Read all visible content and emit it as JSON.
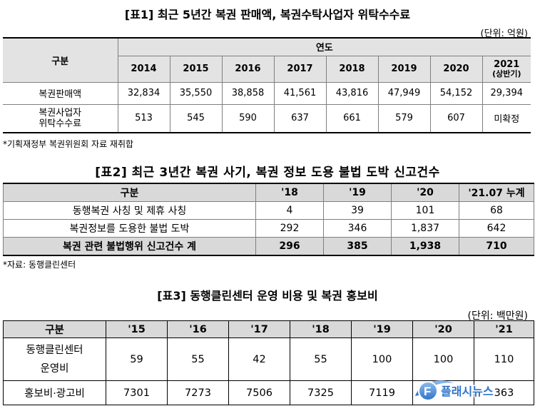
{
  "table1": {
    "title": "[표1] 최근 5년간 복권 판매액, 복권수탁사업자 위탁수수료",
    "unit": "(단위: 억원)",
    "header_group": "구분",
    "header_year": "연도",
    "years": [
      "2014",
      "2015",
      "2016",
      "2017",
      "2018",
      "2019",
      "2020"
    ],
    "year_2021": "2021",
    "year_2021_sub": "(상반기)",
    "rows": [
      {
        "label": "복권판매액",
        "values": [
          "32,834",
          "35,550",
          "38,858",
          "41,561",
          "43,816",
          "47,949",
          "54,152",
          "29,394"
        ]
      },
      {
        "label_line1": "복권사업자",
        "label_line2": "위탁수수료",
        "values": [
          "513",
          "545",
          "590",
          "637",
          "661",
          "579",
          "607",
          "미확정"
        ]
      }
    ],
    "source": "*기획재정부 복권위원회 자료 재취합"
  },
  "table2": {
    "title": "[표2] 최근 3년간 복권 사기, 복권 정보 도용 불법 도박 신고건수",
    "headers": [
      "구분",
      "'18",
      "'19",
      "'20",
      "'21.07 누계"
    ],
    "rows": [
      {
        "label": "동행복권 사칭 및 제휴 사칭",
        "values": [
          "4",
          "39",
          "101",
          "68"
        ]
      },
      {
        "label": "복권정보를 도용한 불법 도박",
        "values": [
          "292",
          "346",
          "1,837",
          "642"
        ]
      }
    ],
    "total": {
      "label": "복권 관련 불법행위 신고건수 계",
      "values": [
        "296",
        "385",
        "1,938",
        "710"
      ]
    },
    "source": "*자료: 동행클린센터"
  },
  "table3": {
    "title": "[표3] 동행클린센터 운영 비용 및 복권 홍보비",
    "unit": "(단위: 백만원)",
    "headers": [
      "구분",
      "'15",
      "'16",
      "'17",
      "'18",
      "'19",
      "'20",
      "'21"
    ],
    "rows": [
      {
        "label_line1": "동행클린센터",
        "label_line2": "운영비",
        "values": [
          "59",
          "55",
          "42",
          "55",
          "100",
          "100",
          "110"
        ]
      },
      {
        "label": "홍보비·광고비",
        "values": [
          "7301",
          "7273",
          "7506",
          "7325",
          "7119",
          "",
          "363"
        ]
      }
    ]
  },
  "watermark": {
    "text": "플래시뉴스",
    "colors": {
      "primary": "#2f73c9",
      "light": "#7fb2ea"
    }
  }
}
